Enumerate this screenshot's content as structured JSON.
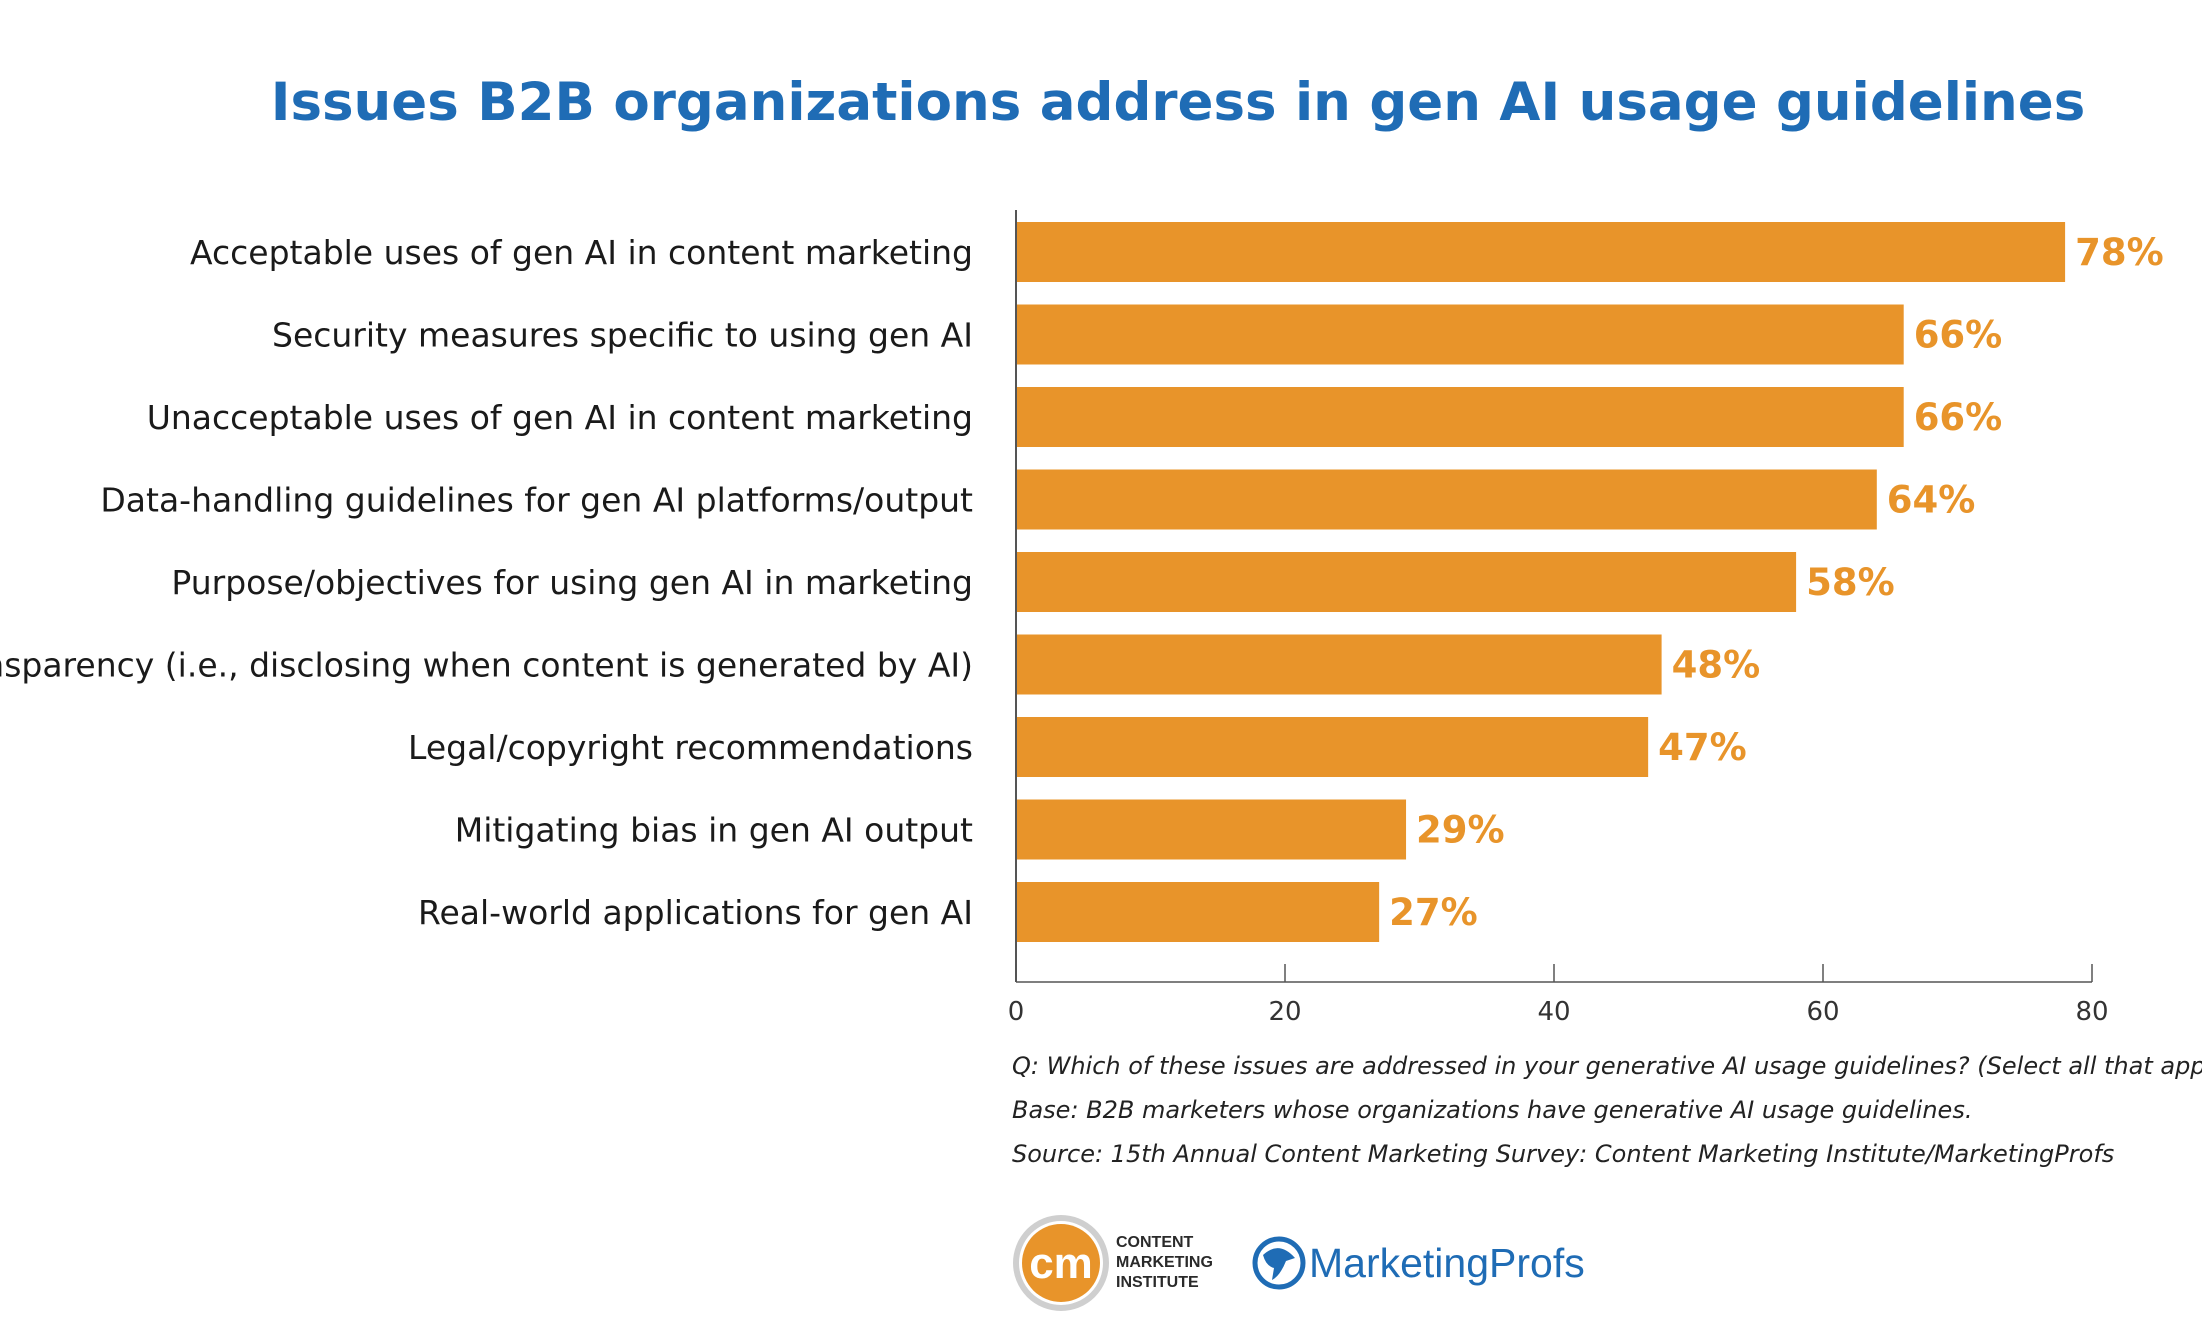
{
  "chart_data": {
    "type": "bar",
    "orientation": "horizontal",
    "title": "Issues B2B organizations address in gen AI usage guidelines",
    "categories": [
      "Acceptable uses of gen AI in content marketing",
      "Security measures specific to using gen AI",
      "Unacceptable uses of gen AI in content marketing",
      "Data-handling guidelines for gen AI platforms/output",
      "Purpose/objectives for using gen AI in marketing",
      "Transparency (i.e., disclosing when content is generated by AI)",
      "Legal/copyright recommendations",
      "Mitigating bias in gen AI output",
      "Real-world applications for gen AI"
    ],
    "values": [
      78,
      66,
      66,
      64,
      58,
      48,
      47,
      29,
      27
    ],
    "value_labels": [
      "78%",
      "66%",
      "66%",
      "64%",
      "58%",
      "48%",
      "47%",
      "29%",
      "27%"
    ],
    "xlim": [
      0,
      80
    ],
    "xticks": [
      "0",
      "20",
      "40",
      "60",
      "80"
    ],
    "xlabel": "",
    "ylabel": "",
    "grid": false,
    "bar_color": "#e8942a",
    "title_color": "#1f6cb5"
  },
  "notes": {
    "question": "Q: Which of these issues are addressed in your generative AI usage guidelines? (Select all that apply.)",
    "base": "Base: B2B marketers whose organizations have generative AI usage guidelines.",
    "source": "Source: 15th Annual Content Marketing Survey: Content Marketing Institute/MarketingProfs"
  },
  "logos": {
    "cmi_mark": "cm",
    "cmi_line1": "CONTENT",
    "cmi_line2": "MARKETING",
    "cmi_line3": "INSTITUTE",
    "marketingprofs": "MarketingProfs",
    "cmi_color": "#e8942a",
    "mp_color": "#1f6cb5"
  }
}
